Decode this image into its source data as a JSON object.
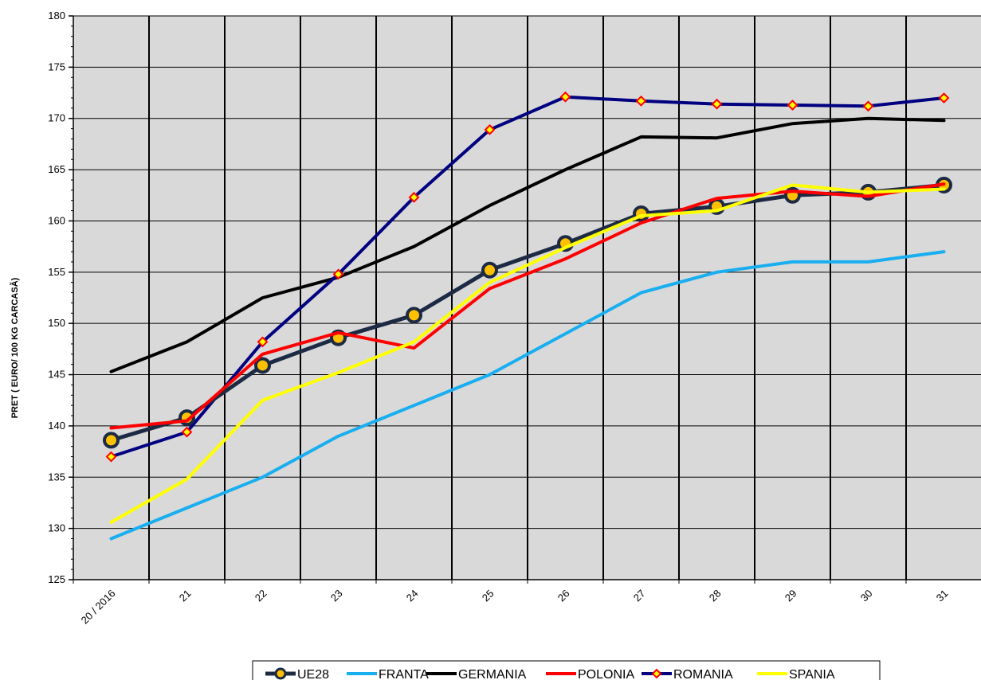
{
  "chart_data": {
    "type": "line",
    "title": "",
    "xlabel": "",
    "ylabel": "PRET ( EURO/ 100 KG CARCASĂ)",
    "categories": [
      "20 / 2016",
      "21",
      "22",
      "23",
      "24",
      "25",
      "26",
      "27",
      "28",
      "29",
      "30",
      "31"
    ],
    "ylim": [
      125,
      180
    ],
    "yticks": [
      125,
      130,
      135,
      140,
      145,
      150,
      155,
      160,
      165,
      170,
      175,
      180
    ],
    "grid": true,
    "legend_position": "bottom",
    "series": [
      {
        "name": "UE28",
        "color": "#1c2a44",
        "marker": "circle",
        "values": [
          138.6,
          140.8,
          145.9,
          148.6,
          150.8,
          155.2,
          157.8,
          160.7,
          161.4,
          162.5,
          162.8,
          163.5
        ]
      },
      {
        "name": "FRANTA",
        "color": "#19aef0",
        "marker": "none",
        "values": [
          129.0,
          132.0,
          135.0,
          139.0,
          142.0,
          145.0,
          149.0,
          153.0,
          155.0,
          156.0,
          156.0,
          157.0
        ]
      },
      {
        "name": "GERMANIA",
        "color": "#000000",
        "marker": "none",
        "values": [
          145.3,
          148.2,
          152.5,
          154.5,
          157.5,
          161.5,
          165.0,
          168.2,
          168.1,
          169.5,
          170.0,
          169.8
        ]
      },
      {
        "name": "POLONIA",
        "color": "#ff0000",
        "marker": "none",
        "values": [
          139.8,
          140.5,
          147.0,
          149.1,
          147.6,
          153.4,
          156.3,
          159.8,
          162.2,
          162.9,
          162.4,
          163.6
        ]
      },
      {
        "name": "ROMANIA",
        "color": "#000080",
        "marker": "diamond",
        "values": [
          137.0,
          139.4,
          148.2,
          154.8,
          162.3,
          168.9,
          172.1,
          171.7,
          171.4,
          171.3,
          171.2,
          172.0
        ]
      },
      {
        "name": "SPANIA",
        "color": "#ffff00",
        "marker": "none",
        "values": [
          130.6,
          134.8,
          142.5,
          145.2,
          148.2,
          154.0,
          157.4,
          160.5,
          161.0,
          163.5,
          162.8,
          163.1
        ]
      }
    ]
  }
}
